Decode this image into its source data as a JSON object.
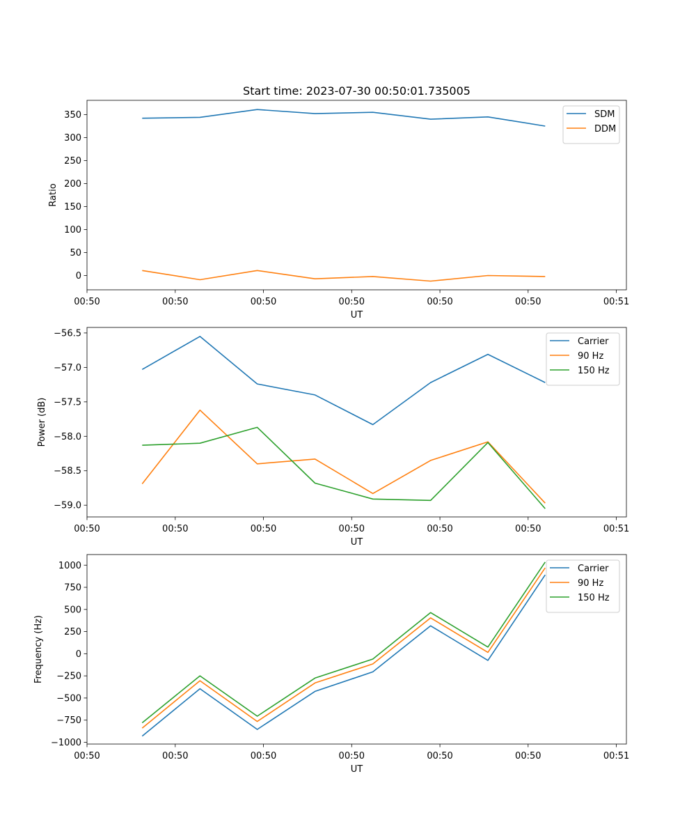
{
  "figure_title": "Start time: 2023-07-30 00:50:01.735005",
  "colors": {
    "c0": "#1f77b4",
    "c1": "#ff7f0e",
    "c2": "#2ca02c"
  },
  "chart_data": [
    {
      "type": "line",
      "title": "Start time: 2023-07-30 00:50:01.735005",
      "xlabel": "UT",
      "ylabel": "Ratio",
      "xlim": [
        0,
        1
      ],
      "x_ticks": [
        0,
        0.1636,
        0.3271,
        0.4907,
        0.6543,
        0.8178,
        0.9814
      ],
      "x_tick_labels": [
        "00:50",
        "00:50",
        "00:50",
        "00:50",
        "00:50",
        "00:50",
        "00:51"
      ],
      "ylim": [
        -31,
        381
      ],
      "y_ticks": [
        0,
        50,
        100,
        150,
        200,
        250,
        300,
        350
      ],
      "y_tick_labels": [
        "0",
        "50",
        "100",
        "150",
        "200",
        "250",
        "300",
        "350"
      ],
      "x": [
        0.1023,
        0.2094,
        0.3156,
        0.4227,
        0.5299,
        0.637,
        0.7432,
        0.8494
      ],
      "legend_position": "top-right",
      "series": [
        {
          "name": "SDM",
          "color": "#1f77b4",
          "values": [
            342,
            344,
            361,
            352,
            355,
            340,
            345,
            325
          ]
        },
        {
          "name": "DDM",
          "color": "#ff7f0e",
          "values": [
            11,
            -9,
            11,
            -7,
            -2,
            -12,
            0,
            -2
          ]
        }
      ]
    },
    {
      "type": "line",
      "title": "",
      "xlabel": "UT",
      "ylabel": "Power (dB)",
      "xlim": [
        0,
        1
      ],
      "x_ticks": [
        0,
        0.1636,
        0.3271,
        0.4907,
        0.6543,
        0.8178,
        0.9814
      ],
      "x_tick_labels": [
        "00:50",
        "00:50",
        "00:50",
        "00:50",
        "00:50",
        "00:50",
        "00:51"
      ],
      "ylim": [
        -59.17,
        -56.42
      ],
      "y_ticks": [
        -59.0,
        -58.5,
        -58.0,
        -57.5,
        -57.0,
        -56.5
      ],
      "y_tick_labels": [
        "−59.0",
        "−58.5",
        "−58.0",
        "−57.5",
        "−57.0",
        "−56.5"
      ],
      "x": [
        0.1023,
        0.2094,
        0.3156,
        0.4227,
        0.5299,
        0.637,
        0.7432,
        0.8494
      ],
      "legend_position": "top-right",
      "series": [
        {
          "name": "Carrier",
          "color": "#1f77b4",
          "values": [
            -57.03,
            -56.55,
            -57.24,
            -57.4,
            -57.83,
            -57.22,
            -56.81,
            -57.22
          ]
        },
        {
          "name": "90 Hz",
          "color": "#ff7f0e",
          "values": [
            -58.69,
            -57.62,
            -58.4,
            -58.33,
            -58.83,
            -58.35,
            -58.08,
            -58.97
          ]
        },
        {
          "name": "150 Hz",
          "color": "#2ca02c",
          "values": [
            -58.13,
            -58.1,
            -57.87,
            -58.68,
            -58.91,
            -58.93,
            -58.09,
            -59.05
          ]
        }
      ]
    },
    {
      "type": "line",
      "title": "",
      "xlabel": "UT",
      "ylabel": "Frequency (Hz)",
      "xlim": [
        0,
        1
      ],
      "x_ticks": [
        0,
        0.1636,
        0.3271,
        0.4907,
        0.6543,
        0.8178,
        0.9814
      ],
      "x_tick_labels": [
        "00:50",
        "00:50",
        "00:50",
        "00:50",
        "00:50",
        "00:50",
        "00:51"
      ],
      "ylim": [
        -1020,
        1120
      ],
      "y_ticks": [
        -1000,
        -750,
        -500,
        -250,
        0,
        250,
        500,
        750,
        1000
      ],
      "y_tick_labels": [
        "−1000",
        "−750",
        "−500",
        "−250",
        "0",
        "250",
        "500",
        "750",
        "1000"
      ],
      "x": [
        0.1023,
        0.2094,
        0.3156,
        0.4227,
        0.5299,
        0.637,
        0.7432,
        0.8494
      ],
      "legend_position": "top-right",
      "series": [
        {
          "name": "Carrier",
          "color": "#1f77b4",
          "values": [
            -930,
            -395,
            -855,
            -425,
            -205,
            315,
            -75,
            890
          ]
        },
        {
          "name": "90 Hz",
          "color": "#ff7f0e",
          "values": [
            -840,
            -305,
            -765,
            -330,
            -115,
            405,
            15,
            970
          ]
        },
        {
          "name": "150 Hz",
          "color": "#2ca02c",
          "values": [
            -780,
            -250,
            -705,
            -275,
            -60,
            465,
            75,
            1035
          ]
        }
      ]
    }
  ]
}
